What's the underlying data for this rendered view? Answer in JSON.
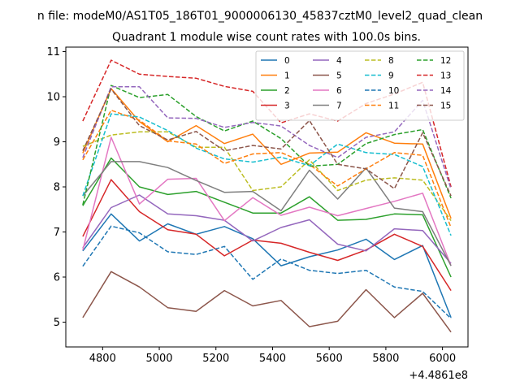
{
  "figure": {
    "suptitle": "n file: modeM0/AS1T05_186T01_9000006130_45837cztM0_level2_quad_clean",
    "offset_label": "+4.4861e8"
  },
  "chart_data": {
    "type": "line",
    "title": "Quadrant 1 module wise count rates with 100.0s bins.",
    "xlabel": "",
    "ylabel": "",
    "xlim": [
      4670,
      6090
    ],
    "ylim": [
      4.45,
      11.1
    ],
    "xticks": [
      4800,
      5000,
      5200,
      5400,
      5600,
      5800,
      6000
    ],
    "yticks": [
      5,
      6,
      7,
      8,
      9,
      10,
      11
    ],
    "grid": false,
    "legend_position": "top-right",
    "x": [
      4730,
      4830,
      4930,
      5030,
      5130,
      5230,
      5330,
      5430,
      5530,
      5630,
      5730,
      5830,
      5930,
      6030
    ],
    "series": [
      {
        "name": "0",
        "color": "#1f77b4",
        "dash": "solid",
        "values": [
          6.58,
          7.4,
          6.8,
          7.18,
          6.95,
          7.12,
          6.85,
          6.25,
          6.45,
          6.6,
          6.84,
          6.39,
          6.7,
          5.1
        ]
      },
      {
        "name": "1",
        "color": "#ff7f0e",
        "dash": "solid",
        "values": [
          8.75,
          10.18,
          9.45,
          9.0,
          9.36,
          8.96,
          9.17,
          8.5,
          8.75,
          8.77,
          9.2,
          8.97,
          8.95,
          7.3
        ]
      },
      {
        "name": "2",
        "color": "#2ca02c",
        "dash": "solid",
        "values": [
          7.58,
          8.64,
          8.0,
          7.83,
          7.9,
          7.66,
          7.42,
          7.42,
          7.78,
          7.26,
          7.28,
          7.4,
          7.38,
          6.0
        ]
      },
      {
        "name": "3",
        "color": "#d62728",
        "dash": "solid",
        "values": [
          6.9,
          8.16,
          7.45,
          7.05,
          6.95,
          6.47,
          6.82,
          6.75,
          6.55,
          6.37,
          6.6,
          6.95,
          6.68,
          5.7
        ]
      },
      {
        "name": "4",
        "color": "#9467bd",
        "dash": "solid",
        "values": [
          6.65,
          7.54,
          7.82,
          7.4,
          7.36,
          7.26,
          6.8,
          7.1,
          7.27,
          6.73,
          6.58,
          7.07,
          7.03,
          6.3
        ]
      },
      {
        "name": "5",
        "color": "#8c564b",
        "dash": "solid",
        "values": [
          5.1,
          6.12,
          5.78,
          5.32,
          5.24,
          5.7,
          5.36,
          5.48,
          4.9,
          5.02,
          5.72,
          5.1,
          5.64,
          4.78
        ]
      },
      {
        "name": "6",
        "color": "#e377c2",
        "dash": "solid",
        "values": [
          6.6,
          9.1,
          7.62,
          8.17,
          8.19,
          7.25,
          7.76,
          7.37,
          7.55,
          7.36,
          7.52,
          7.68,
          7.86,
          6.25
        ]
      },
      {
        "name": "7",
        "color": "#7f7f7f",
        "dash": "solid",
        "values": [
          7.8,
          8.56,
          8.56,
          8.43,
          8.14,
          7.88,
          7.9,
          7.47,
          8.37,
          7.73,
          8.42,
          7.53,
          7.45,
          6.25
        ]
      },
      {
        "name": "8",
        "color": "#bcbd22",
        "dash": "dashed",
        "values": [
          8.9,
          9.15,
          9.22,
          9.22,
          8.88,
          8.88,
          7.92,
          8.0,
          8.6,
          7.92,
          8.15,
          8.2,
          8.15,
          7.25
        ]
      },
      {
        "name": "9",
        "color": "#17becf",
        "dash": "dashed",
        "values": [
          7.8,
          9.62,
          9.55,
          9.25,
          8.86,
          8.62,
          8.55,
          8.66,
          8.47,
          8.95,
          8.76,
          8.72,
          8.45,
          6.92
        ]
      },
      {
        "name": "10",
        "color": "#1f77b4",
        "dash": "dashed",
        "values": [
          6.24,
          7.13,
          6.98,
          6.56,
          6.5,
          6.68,
          5.95,
          6.4,
          6.15,
          6.08,
          6.15,
          5.78,
          5.68,
          5.08
        ]
      },
      {
        "name": "11",
        "color": "#ff7f0e",
        "dash": "dashed",
        "values": [
          8.6,
          9.7,
          9.48,
          9.02,
          8.95,
          8.52,
          8.73,
          8.76,
          8.5,
          8.02,
          8.4,
          8.76,
          8.7,
          7.1
        ]
      },
      {
        "name": "12",
        "color": "#2ca02c",
        "dash": "dashed",
        "values": [
          7.6,
          10.25,
          9.98,
          10.05,
          9.56,
          9.24,
          9.46,
          9.07,
          8.46,
          8.5,
          8.96,
          9.16,
          9.27,
          7.75
        ]
      },
      {
        "name": "13",
        "color": "#d62728",
        "dash": "dashed",
        "values": [
          9.46,
          10.81,
          10.5,
          10.45,
          10.41,
          10.23,
          10.12,
          9.42,
          9.62,
          9.46,
          9.85,
          10.06,
          10.32,
          8.0
        ]
      },
      {
        "name": "14",
        "color": "#9467bd",
        "dash": "dashed",
        "values": [
          8.65,
          10.22,
          10.22,
          9.53,
          9.52,
          9.32,
          9.43,
          9.35,
          8.92,
          8.65,
          9.1,
          9.22,
          9.92,
          7.95
        ]
      },
      {
        "name": "15",
        "color": "#8c564b",
        "dash": "dashed",
        "values": [
          8.8,
          10.17,
          9.36,
          9.04,
          9.23,
          8.8,
          8.92,
          8.84,
          9.47,
          8.5,
          8.4,
          7.96,
          9.2,
          7.8
        ]
      }
    ]
  }
}
